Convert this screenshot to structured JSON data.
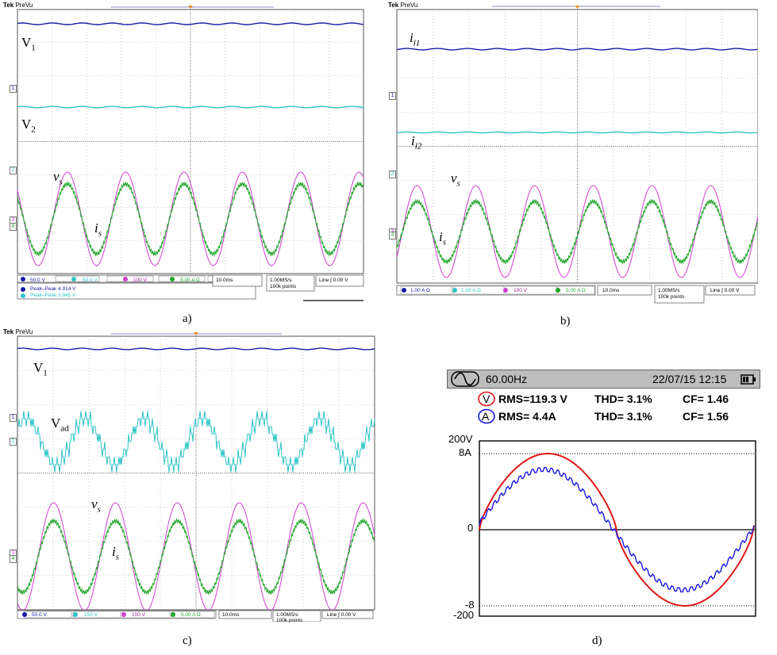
{
  "panels": {
    "a": {
      "caption": "a)",
      "header": {
        "brand": "Tek",
        "mode": "PreVu"
      },
      "labels": {
        "v1_main": "V",
        "v1_sub": "1",
        "v2_main": "V",
        "v2_sub": "2",
        "vs_main": "v",
        "vs_sub": "s",
        "is_main": "i",
        "is_sub": "s"
      },
      "markers": [
        "1",
        "2",
        "3",
        "4"
      ],
      "status": {
        "ch1": "50.0 V",
        "ch2": "50.0 V",
        "ch3": "100 V",
        "ch4": "5.00 A Ω",
        "timebase": "10.0ms",
        "rate": "1.00MS/s",
        "points": "100k points",
        "trigger": "Line ∫ 0.00 V",
        "meas1": "Peak–Peak  4.914 V",
        "meas2": "Peak–Peak  3.945 V"
      }
    },
    "b": {
      "caption": "b)",
      "header": {
        "brand": "Tek",
        "mode": "PreVu"
      },
      "labels": {
        "il1_main": "i",
        "il1_sub": "l1",
        "il2_main": "i",
        "il2_sub": "l2",
        "vs_main": "v",
        "vs_sub": "s",
        "is_main": "i",
        "is_sub": "s"
      },
      "markers": [
        "1",
        "2",
        "3",
        "4"
      ],
      "status": {
        "ch1": "1.00 A Ω",
        "ch2": "1.00 A Ω",
        "ch3": "100 V",
        "ch4": "5.00 A Ω",
        "timebase": "10.0ms",
        "rate": "1.00MS/s",
        "points": "100k points",
        "trigger": "Line ∫ 0.00 V"
      }
    },
    "c": {
      "caption": "c)",
      "header": {
        "brand": "Tek",
        "mode": "PreVu"
      },
      "labels": {
        "v1_main": "V",
        "v1_sub": "1",
        "vad_main": "V",
        "vad_sub": "ad",
        "vs_main": "v",
        "vs_sub": "s",
        "is_main": "i",
        "is_sub": "s"
      },
      "markers": [
        "1",
        "2",
        "3",
        "4"
      ],
      "status": {
        "ch1": "50.0 V",
        "ch2": "250 V",
        "ch3": "100 V",
        "ch4": "5.00 A Ω",
        "timebase": "10.0ms",
        "rate": "1.00MS/s",
        "points": "100k points",
        "trigger": "Line ∫ 0.00 V"
      }
    },
    "d": {
      "caption": "d)",
      "frequency": "60.00Hz",
      "datetime": "22/07/15  12:15",
      "v_row": {
        "symbol": "V",
        "rms": "RMS=119.3 V",
        "thd": "THD=   3.1%",
        "cf": "CF=  1.46"
      },
      "a_row": {
        "symbol": "A",
        "rms": "RMS=    4.4A",
        "thd": "THD=   3.1%",
        "cf": "CF=  1.56"
      },
      "axis": {
        "v_top": "200V",
        "a_top": "8A",
        "zero": "0",
        "a_bottom": "-8",
        "v_bottom": "-200"
      }
    }
  },
  "colors": {
    "ch1": "#1a1aa8",
    "ch2": "#2ec4c8",
    "ch3": "#d040d0",
    "ch4": "#22a52a",
    "pq_voltage": "#e01818",
    "pq_current": "#1818e0"
  }
}
